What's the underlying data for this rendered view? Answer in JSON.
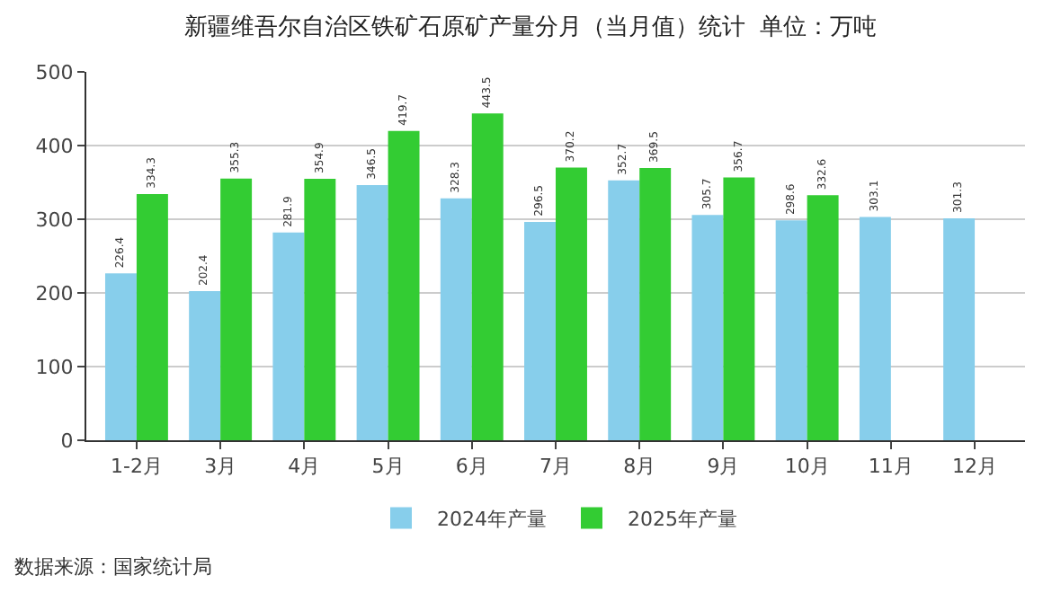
{
  "chart_data": {
    "type": "bar",
    "title": "新疆维吾尔自治区铁矿石原矿产量分月（当月值）统计  单位：万吨",
    "categories": [
      "1-2月",
      "3月",
      "4月",
      "5月",
      "6月",
      "7月",
      "8月",
      "9月",
      "10月",
      "11月",
      "12月"
    ],
    "series": [
      {
        "name": "2024年产量",
        "color": "#87ceeb",
        "values": [
          226.4,
          202.4,
          281.9,
          346.5,
          328.3,
          296.5,
          352.7,
          305.7,
          298.6,
          303.1,
          301.3
        ]
      },
      {
        "name": "2025年产量",
        "color": "#33cc33",
        "values": [
          334.3,
          355.3,
          354.9,
          419.7,
          443.5,
          370.2,
          369.5,
          356.7,
          332.6,
          null,
          null
        ]
      }
    ],
    "ylim": [
      0,
      500
    ],
    "yticks": [
      0,
      100,
      200,
      300,
      400,
      500
    ],
    "grid": "y",
    "legend": "bottom",
    "data_labels": true,
    "annotations": [
      "数据来源：国家统计局"
    ]
  }
}
